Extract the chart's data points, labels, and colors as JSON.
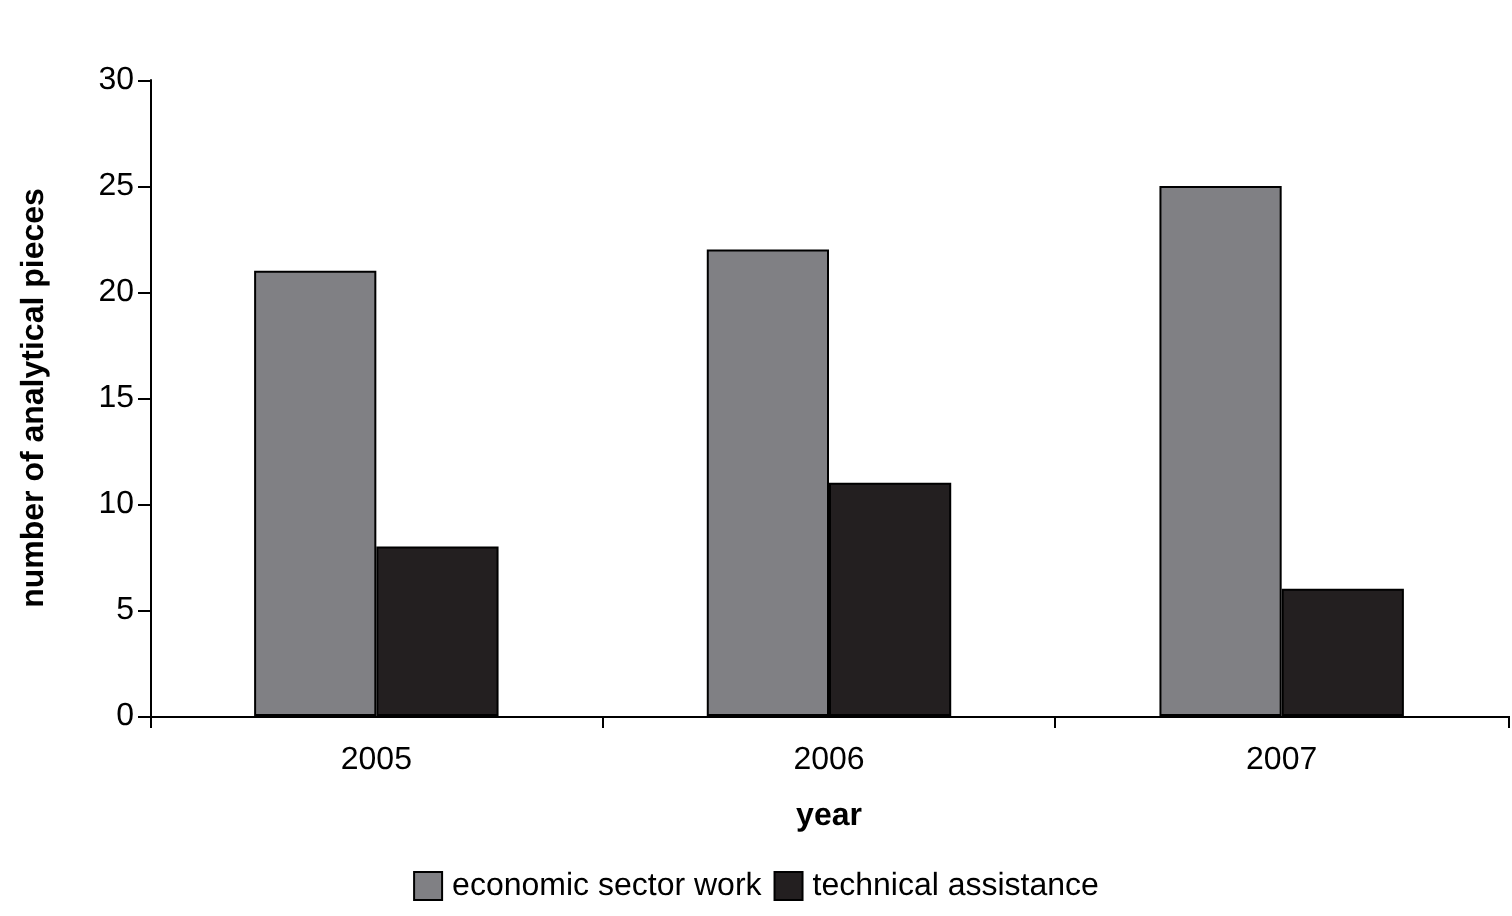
{
  "chart_data": {
    "type": "bar",
    "xlabel": "year",
    "ylabel": "number of analytical pieces",
    "categories": [
      "2005",
      "2006",
      "2007"
    ],
    "series": [
      {
        "name": "economic sector work",
        "color": "#808084",
        "values": [
          21,
          22,
          25
        ]
      },
      {
        "name": "technical assistance",
        "color": "#231f20",
        "values": [
          8,
          11,
          6
        ]
      }
    ],
    "ylim": [
      0,
      30
    ],
    "yticks": [
      0,
      5,
      10,
      15,
      20,
      25,
      30
    ],
    "grid": false,
    "legend": "bottom"
  }
}
